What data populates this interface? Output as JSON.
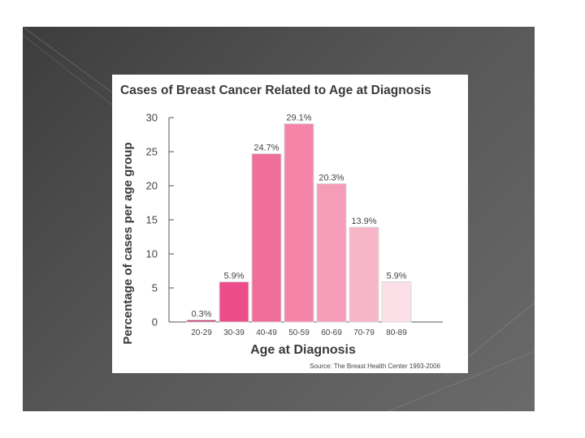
{
  "chart_data": {
    "type": "bar",
    "title": "Cases of Breast Cancer Related to Age at Diagnosis",
    "xlabel": "Age at Diagnosis",
    "ylabel": "Percentage of cases per age group",
    "categories": [
      "20-29",
      "30-39",
      "40-49",
      "50-59",
      "60-69",
      "70-79",
      "80-89"
    ],
    "values": [
      0.3,
      5.9,
      24.7,
      29.1,
      20.3,
      13.9,
      5.9
    ],
    "data_labels": [
      "0.3%",
      "5.9%",
      "24.7%",
      "29.1%",
      "20.3%",
      "13.9%",
      "5.9%"
    ],
    "ylim": [
      0,
      30
    ],
    "yticks": [
      0,
      5,
      10,
      15,
      20,
      25,
      30
    ],
    "grid": false,
    "source": "Source: The Breast Health Center 1993-2006",
    "colors": {
      "bars": [
        "#c83e78",
        "#ec4c8a",
        "#f06e9a",
        "#f585a8",
        "#f59db8",
        "#f7b5c8",
        "#fbe0e8"
      ],
      "bar_border": "#d8d8d8",
      "axis": "#555555"
    }
  }
}
